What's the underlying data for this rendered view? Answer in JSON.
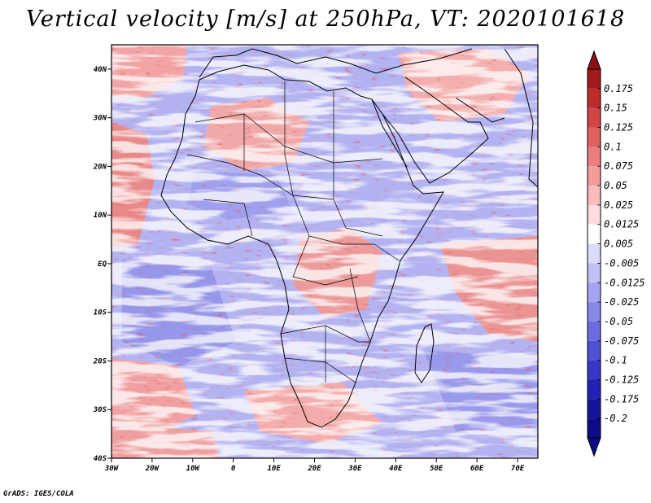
{
  "title": "Vertical velocity [m/s] at 250hPa, VT: 2020101618",
  "footer": "GrADS: IGES/COLA",
  "map": {
    "region": "Africa",
    "projection": "lat-lon",
    "lon_range": [
      -30,
      75
    ],
    "lat_range": [
      -40,
      45
    ],
    "lon_ticks": [
      {
        "value": -30,
        "label": "30W"
      },
      {
        "value": -20,
        "label": "20W"
      },
      {
        "value": -10,
        "label": "10W"
      },
      {
        "value": 0,
        "label": "0"
      },
      {
        "value": 10,
        "label": "10E"
      },
      {
        "value": 20,
        "label": "20E"
      },
      {
        "value": 30,
        "label": "30E"
      },
      {
        "value": 40,
        "label": "40E"
      },
      {
        "value": 50,
        "label": "50E"
      },
      {
        "value": 60,
        "label": "60E"
      },
      {
        "value": 70,
        "label": "70E"
      }
    ],
    "lat_ticks": [
      {
        "value": 40,
        "label": "40N"
      },
      {
        "value": 30,
        "label": "30N"
      },
      {
        "value": 20,
        "label": "20N"
      },
      {
        "value": 10,
        "label": "10N"
      },
      {
        "value": 0,
        "label": "EQ"
      },
      {
        "value": -10,
        "label": "10S"
      },
      {
        "value": -20,
        "label": "20S"
      },
      {
        "value": -30,
        "label": "30S"
      },
      {
        "value": -40,
        "label": "40S"
      }
    ]
  },
  "colorbar": {
    "levels": [
      {
        "label": "0.175",
        "color": "#a31a1a"
      },
      {
        "label": "0.15",
        "color": "#bd2b2b"
      },
      {
        "label": "0.125",
        "color": "#d24545"
      },
      {
        "label": "0.1",
        "color": "#e06060"
      },
      {
        "label": "0.075",
        "color": "#ea7e7e"
      },
      {
        "label": "0.05",
        "color": "#f29c9c"
      },
      {
        "label": "0.025",
        "color": "#f8bcbc"
      },
      {
        "label": "0.0125",
        "color": "#fcdcdc"
      },
      {
        "label": "0.005",
        "color": "#ffffff"
      },
      {
        "label": "-0.005",
        "color": "#dcdcfa"
      },
      {
        "label": "-0.0125",
        "color": "#c0c0f6"
      },
      {
        "label": "-0.025",
        "color": "#a4a4f0"
      },
      {
        "label": "-0.05",
        "color": "#8888ea"
      },
      {
        "label": "-0.075",
        "color": "#6c6ce2"
      },
      {
        "label": "-0.1",
        "color": "#5050d6"
      },
      {
        "label": "-0.125",
        "color": "#3838c8"
      },
      {
        "label": "-0.175",
        "color": "#2222b4"
      },
      {
        "label": "-0.2",
        "color": "#14149a"
      }
    ],
    "top_color": "#8e1010",
    "bottom_color": "#0c0c86"
  }
}
